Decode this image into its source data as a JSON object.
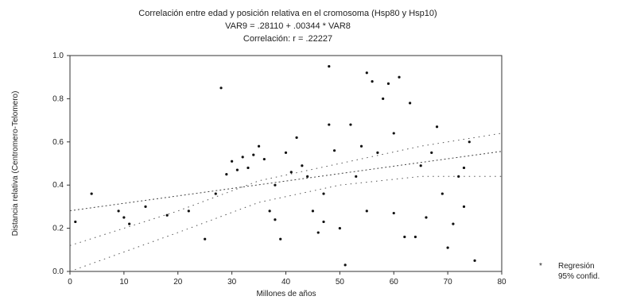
{
  "chart_data": {
    "type": "scatter",
    "title_lines": [
      "Correlación entre edad y  posición relativa en el cromosoma (Hsp80 y Hsp10)",
      "VAR9 =  .28110 + .00344 * VAR8",
      "Correlación: r = .22227"
    ],
    "xlabel": "Millones de años",
    "ylabel": "Distancia relativa (Centromero-Telomero)",
    "xlim": [
      0,
      80
    ],
    "ylim": [
      0,
      1.0
    ],
    "x_ticks": [
      "0",
      "10",
      "20",
      "30",
      "40",
      "50",
      "60",
      "70",
      "80"
    ],
    "y_ticks": [
      "0.0",
      "0.2",
      "0.4",
      "0.6",
      "0.8",
      "1.0"
    ],
    "regression": {
      "intercept": 0.2811,
      "slope": 0.00344
    },
    "confidence_band": {
      "upper": [
        [
          0,
          0.12
        ],
        [
          20,
          0.28
        ],
        [
          35,
          0.42
        ],
        [
          50,
          0.5
        ],
        [
          65,
          0.58
        ],
        [
          80,
          0.64
        ]
      ],
      "lower": [
        [
          0,
          -0.02
        ],
        [
          20,
          0.18
        ],
        [
          35,
          0.32
        ],
        [
          50,
          0.4
        ],
        [
          65,
          0.44
        ],
        [
          80,
          0.44
        ]
      ]
    },
    "legend": [
      "Regresión",
      "95% confid."
    ],
    "legend_position": "right",
    "points": [
      [
        1,
        0.23
      ],
      [
        4,
        0.36
      ],
      [
        9,
        0.28
      ],
      [
        10,
        0.25
      ],
      [
        11,
        0.22
      ],
      [
        14,
        0.3
      ],
      [
        18,
        0.26
      ],
      [
        22,
        0.28
      ],
      [
        25,
        0.15
      ],
      [
        27,
        0.36
      ],
      [
        28,
        0.85
      ],
      [
        29,
        0.45
      ],
      [
        30,
        0.51
      ],
      [
        31,
        0.47
      ],
      [
        32,
        0.53
      ],
      [
        33,
        0.48
      ],
      [
        34,
        0.54
      ],
      [
        35,
        0.58
      ],
      [
        36,
        0.52
      ],
      [
        37,
        0.28
      ],
      [
        38,
        0.4
      ],
      [
        38,
        0.24
      ],
      [
        39,
        0.15
      ],
      [
        40,
        0.55
      ],
      [
        41,
        0.46
      ],
      [
        42,
        0.62
      ],
      [
        43,
        0.49
      ],
      [
        44,
        0.44
      ],
      [
        45,
        0.28
      ],
      [
        46,
        0.18
      ],
      [
        47,
        0.36
      ],
      [
        47,
        0.23
      ],
      [
        48,
        0.95
      ],
      [
        48,
        0.68
      ],
      [
        49,
        0.56
      ],
      [
        50,
        0.2
      ],
      [
        51,
        0.03
      ],
      [
        52,
        0.68
      ],
      [
        53,
        0.44
      ],
      [
        54,
        0.58
      ],
      [
        55,
        0.92
      ],
      [
        55,
        0.28
      ],
      [
        56,
        0.88
      ],
      [
        57,
        0.55
      ],
      [
        58,
        0.8
      ],
      [
        59,
        0.87
      ],
      [
        60,
        0.64
      ],
      [
        60,
        0.27
      ],
      [
        61,
        0.9
      ],
      [
        62,
        0.16
      ],
      [
        63,
        0.78
      ],
      [
        64,
        0.16
      ],
      [
        65,
        0.49
      ],
      [
        66,
        0.25
      ],
      [
        67,
        0.55
      ],
      [
        68,
        0.67
      ],
      [
        69,
        0.36
      ],
      [
        70,
        0.11
      ],
      [
        71,
        0.22
      ],
      [
        72,
        0.44
      ],
      [
        73,
        0.3
      ],
      [
        73,
        0.48
      ],
      [
        74,
        0.6
      ],
      [
        75,
        0.05
      ]
    ]
  }
}
